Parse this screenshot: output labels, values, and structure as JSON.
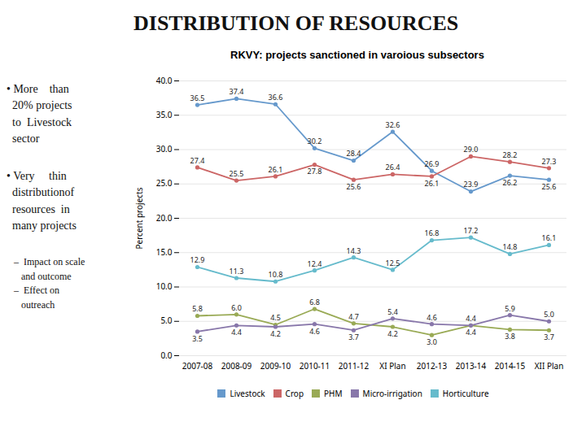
{
  "chart_data": {
    "type": "line",
    "title": "RKVY: projects sanctioned in varoious subsectors",
    "ylabel": "Percent projects",
    "categories": [
      "2007-08",
      "2008-09",
      "2009-10",
      "2010-11",
      "2011-12",
      "XI Plan",
      "2012-13",
      "2013-14",
      "2014-15",
      "XII Plan"
    ],
    "series": [
      {
        "name": "Livestock",
        "color": "#6699cc",
        "values": [
          36.5,
          37.4,
          36.6,
          30.2,
          28.4,
          32.6,
          26.9,
          23.9,
          26.2,
          25.6
        ],
        "value_labels": [
          "36.5",
          "37.4",
          "36.6",
          "30.2",
          "28.4",
          "32.6",
          "26.9",
          "23.9",
          "26.2",
          "25.6"
        ]
      },
      {
        "name": "Crop",
        "color": "#cc6666",
        "values": [
          27.4,
          25.5,
          26.1,
          27.8,
          25.6,
          26.4,
          26.1,
          29.0,
          28.2,
          27.3
        ],
        "value_labels": [
          "27.4",
          "25.5",
          "26.1",
          "27.8",
          "25.6",
          "26.4",
          "26.1",
          "29.0",
          "28.2",
          "27.3"
        ]
      },
      {
        "name": "PHM",
        "color": "#99aa55",
        "values": [
          5.8,
          6.0,
          4.5,
          6.8,
          4.7,
          4.2,
          3.0,
          4.4,
          3.8,
          3.7
        ],
        "value_labels": [
          "5.8",
          "6.0",
          "4.5",
          "6.8",
          "4.7",
          "4.2",
          "3.0",
          "4.4",
          "3.8",
          "3.7"
        ]
      },
      {
        "name": "Micro-irrigation",
        "color": "#8877aa",
        "values": [
          3.5,
          4.4,
          4.2,
          4.6,
          3.7,
          5.4,
          4.6,
          4.4,
          5.9,
          5.0
        ],
        "value_labels": [
          "3.5",
          "4.4",
          "4.2",
          "4.6",
          "3.7",
          "5.4",
          "4.6",
          "4.4",
          "5.9",
          "5.0"
        ]
      },
      {
        "name": "Horticulture",
        "color": "#66bbcc",
        "values": [
          12.9,
          11.3,
          10.8,
          12.4,
          14.3,
          12.5,
          16.8,
          17.2,
          14.8,
          16.1
        ],
        "value_labels": [
          "12.9",
          "11.3",
          "10.8",
          "12.4",
          "14.3",
          "12.5",
          "16.8",
          "17.2",
          "14.8",
          "16.1"
        ]
      }
    ],
    "ylim": [
      0,
      40
    ],
    "yticks": [
      {
        "value": 0,
        "label": "0.0"
      },
      {
        "value": 5,
        "label": "5.0"
      },
      {
        "value": 10,
        "label": "10.0"
      },
      {
        "value": 15,
        "label": "15.0"
      },
      {
        "value": 20,
        "label": "20.0"
      },
      {
        "value": 25,
        "label": "25.0"
      },
      {
        "value": 30,
        "label": "30.0"
      },
      {
        "value": 35,
        "label": "35.0"
      },
      {
        "value": 40,
        "label": "40.0"
      }
    ],
    "grid": true,
    "data_labels": true,
    "marker": "circle",
    "legend": "bottom",
    "annotations": [
      "DISTRIBUTION OF RESOURCES",
      "• More    than\n  20% projects\n  to  Livestock\n  sector",
      "• Very     thin\n  distributionof\n  resources  in\n  many projects",
      "   –  Impact on scale\n      and outcome\n   –  Effect on\n      outreach"
    ]
  }
}
